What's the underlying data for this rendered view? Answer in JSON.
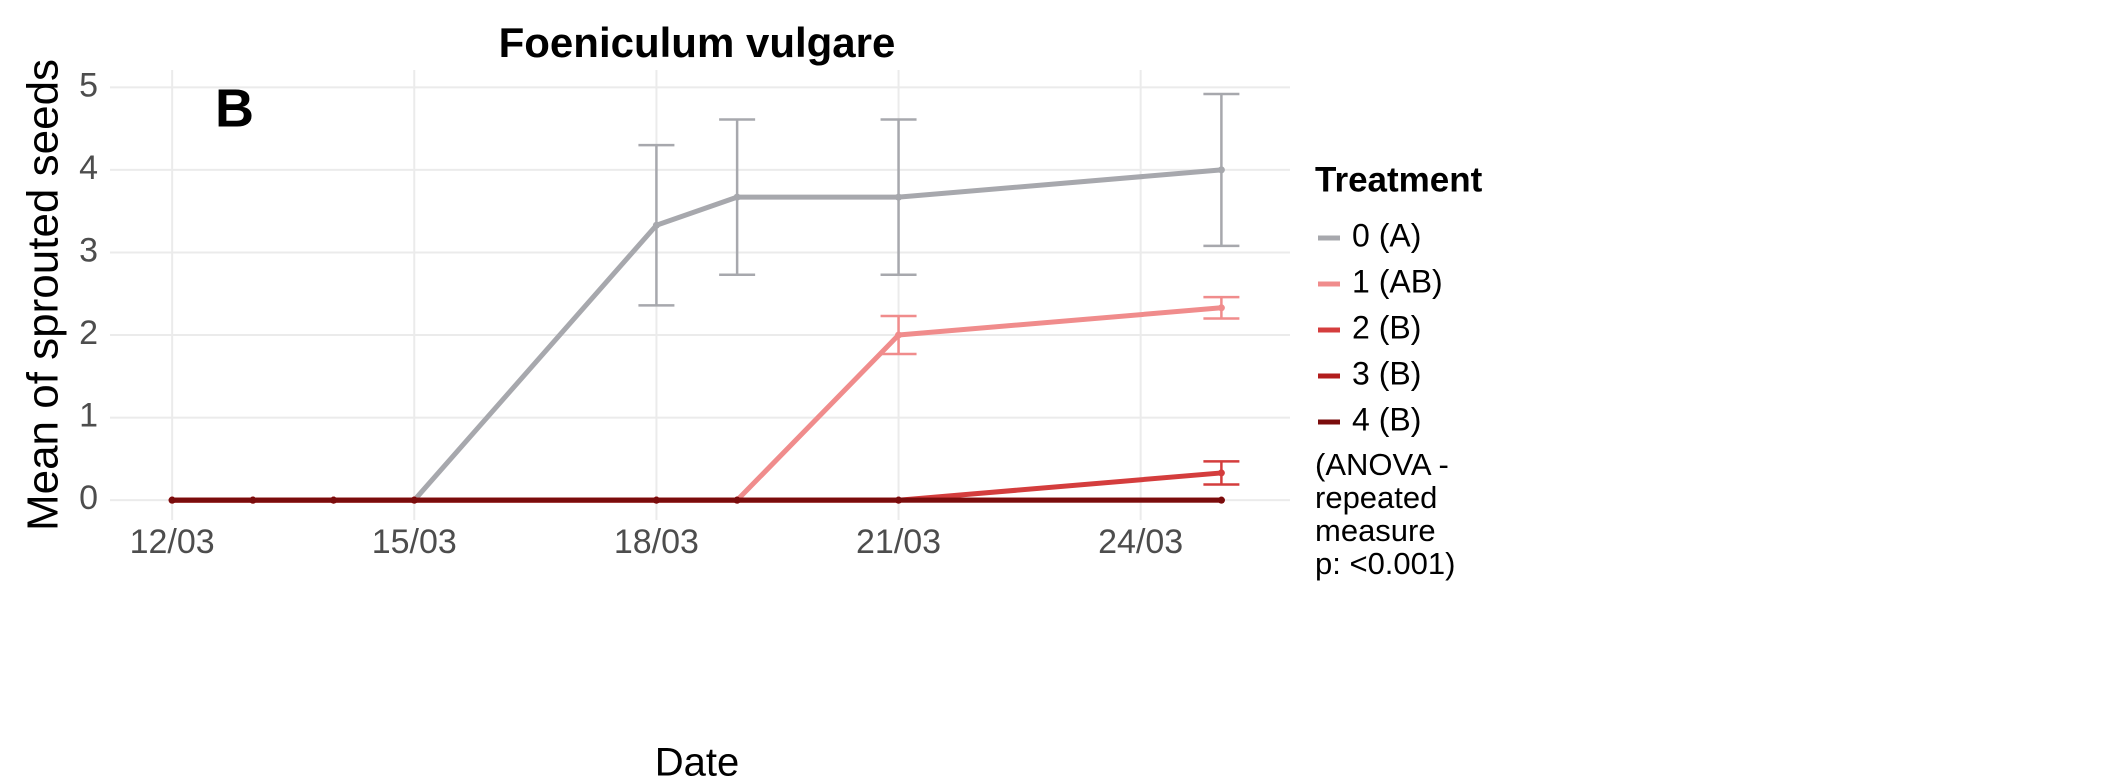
{
  "chart_data": {
    "type": "line",
    "title": "Foeniculum vulgare",
    "panel_label": "B",
    "x_label": "Date",
    "y_label": "Mean of sprouted seeds",
    "x": [
      12,
      13,
      14,
      15,
      18,
      19,
      21,
      25
    ],
    "xlim": [
      11.23,
      25.85
    ],
    "xticks": [
      {
        "value": 12,
        "label": "12/03"
      },
      {
        "value": 15,
        "label": "15/03"
      },
      {
        "value": 18,
        "label": "18/03"
      },
      {
        "value": 21,
        "label": "21/03"
      },
      {
        "value": 24,
        "label": "24/03"
      }
    ],
    "ylim": [
      -0.24,
      5.21
    ],
    "yticks": [
      0,
      1,
      2,
      3,
      4,
      5
    ],
    "grid": true,
    "legend_title": "Treatment",
    "legend_position": "right",
    "series": [
      {
        "name": "0 (A)",
        "color": "#a7a8ad",
        "values": [
          0,
          0,
          0,
          0,
          3.33,
          3.67,
          3.67,
          4.0
        ],
        "errors": [
          null,
          null,
          null,
          null,
          0.97,
          0.94,
          0.94,
          0.92
        ]
      },
      {
        "name": "1 (AB)",
        "color": "#f08c8c",
        "values": [
          0,
          0,
          0,
          0,
          0,
          0,
          2.0,
          2.33
        ],
        "errors": [
          null,
          null,
          null,
          null,
          null,
          null,
          0.23,
          0.13
        ]
      },
      {
        "name": "2 (B)",
        "color": "#d43d3d",
        "values": [
          0,
          0,
          0,
          0,
          0,
          0,
          0,
          0.33
        ],
        "errors": [
          null,
          null,
          null,
          null,
          null,
          null,
          null,
          0.14
        ]
      },
      {
        "name": "3 (B)",
        "color": "#b21d1d",
        "values": [
          0,
          0,
          0,
          0,
          0,
          0,
          0,
          0
        ],
        "errors": [
          null,
          null,
          null,
          null,
          null,
          null,
          null,
          null
        ]
      },
      {
        "name": "4 (B)",
        "color": "#7a0c0c",
        "values": [
          0,
          0,
          0,
          0,
          0,
          0,
          0,
          0
        ],
        "errors": [
          null,
          null,
          null,
          null,
          null,
          null,
          null,
          null
        ]
      }
    ],
    "annotation": [
      "(ANOVA -",
      "repeated",
      "measure",
      "p: <0.001)"
    ]
  }
}
